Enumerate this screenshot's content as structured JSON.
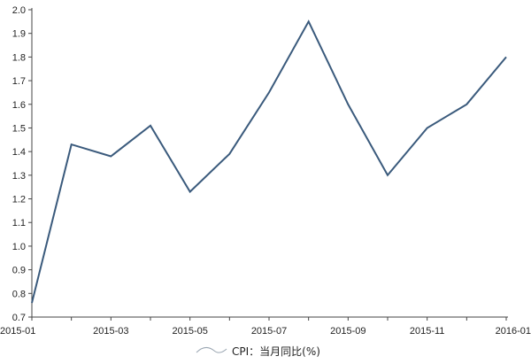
{
  "chart_data": {
    "type": "line",
    "title": "",
    "xlabel": "",
    "ylabel": "",
    "x": [
      "2015-01",
      "2015-02",
      "2015-03",
      "2015-04",
      "2015-05",
      "2015-06",
      "2015-07",
      "2015-08",
      "2015-09",
      "2015-10",
      "2015-11",
      "2015-12",
      "2016-01"
    ],
    "x_tick_labels": [
      "2015-01",
      "2015-03",
      "2015-05",
      "2015-07",
      "2015-09",
      "2015-11",
      "2016-01"
    ],
    "y_tick_labels": [
      "0.7",
      "0.8",
      "0.9",
      "1.0",
      "1.1",
      "1.2",
      "1.3",
      "1.4",
      "1.5",
      "1.6",
      "1.7",
      "1.8",
      "1.9",
      "2.0"
    ],
    "ylim": [
      0.7,
      2.0
    ],
    "grid": false,
    "legend_position": "bottom-center",
    "series": [
      {
        "name": "CPI：当月同比(%)",
        "color": "#3a5a7c",
        "values": [
          0.76,
          1.43,
          1.38,
          1.51,
          1.23,
          1.39,
          1.65,
          1.95,
          1.6,
          1.3,
          1.5,
          1.6,
          1.8
        ]
      }
    ]
  }
}
